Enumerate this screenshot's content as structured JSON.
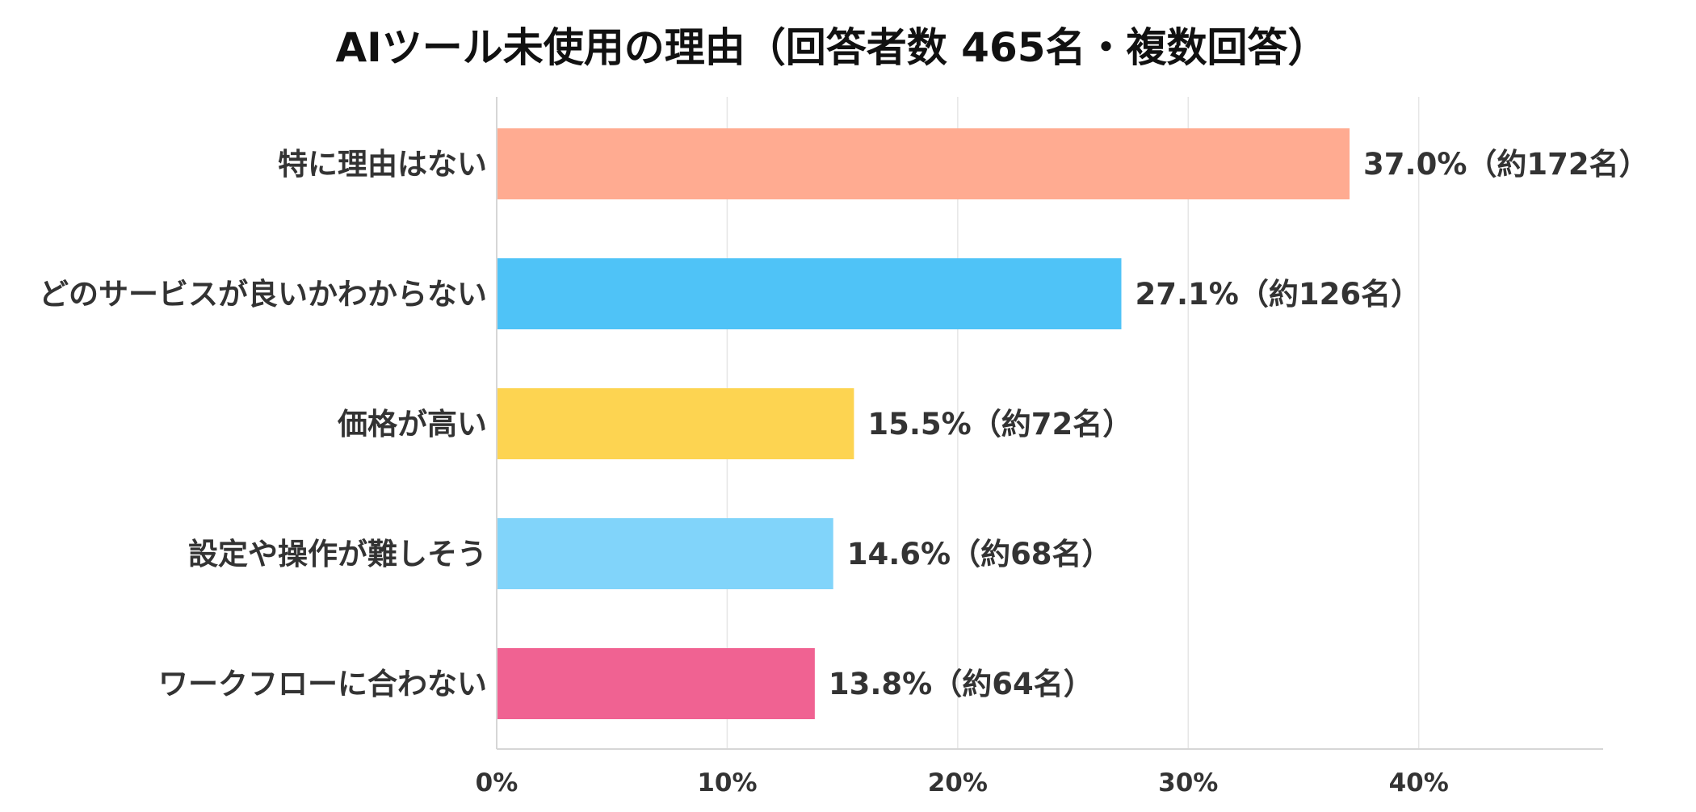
{
  "chart_data": {
    "type": "bar",
    "orientation": "horizontal",
    "title": "AIツール未使用の理由（回答者数 465名・複数回答）",
    "categories": [
      "特に理由はない",
      "どのサービスが良いかわからない",
      "価格が高い",
      "設定や操作が難しそう",
      "ワークフローに合わない"
    ],
    "values": [
      37.0,
      27.1,
      15.5,
      14.6,
      13.8
    ],
    "value_unit": "%",
    "data_labels": [
      "37.0%（約172名）",
      "27.1%（約126名）",
      "15.5%（約72名）",
      "14.6%（約68名）",
      "13.8%（約64名）"
    ],
    "colors": [
      "#FFAB91",
      "#4FC3F7",
      "#FDD451",
      "#81D4FA",
      "#F06292"
    ],
    "xlim": [
      0,
      48
    ],
    "x_ticks": [
      0,
      10,
      20,
      30,
      40
    ],
    "x_tick_labels": [
      "0%",
      "10%",
      "20%",
      "30%",
      "40%"
    ],
    "xlabel": "",
    "ylabel": "",
    "grid": "vertical",
    "legend": "none"
  }
}
